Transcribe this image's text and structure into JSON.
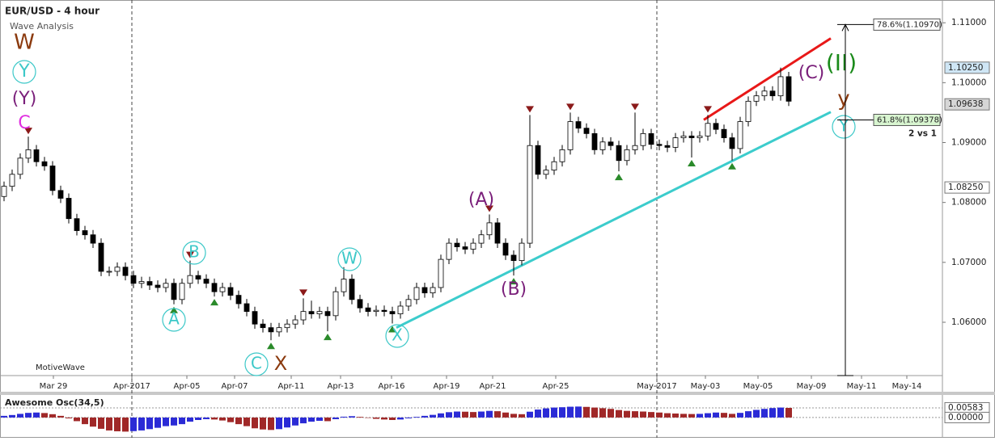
{
  "chart_data": {
    "type": "candlestick",
    "title": "EUR/USD - 4 hour",
    "subtitle": "Wave Analysis",
    "footer": "MotiveWave",
    "up_color": "#ffffff",
    "down_color": "#000000",
    "open": [
      1.081,
      1.0827,
      1.0847,
      1.0874,
      1.0888,
      1.0868,
      1.0861,
      1.082,
      1.0807,
      1.0773,
      1.0753,
      1.0746,
      1.0732,
      1.0685,
      1.0685,
      1.0692,
      1.0678,
      1.0665,
      1.0668,
      1.0662,
      1.0658,
      1.0665,
      1.0638,
      1.0665,
      1.0678,
      1.0672,
      1.0665,
      1.0651,
      1.0658,
      1.0645,
      1.0631,
      1.0618,
      1.0597,
      1.0591,
      1.0584,
      1.0591,
      1.0597,
      1.0604,
      1.0618,
      1.0614,
      1.0618,
      1.0611,
      1.0651,
      1.0672,
      1.0638,
      1.0624,
      1.0618,
      1.062,
      1.0618,
      1.0614,
      1.0627,
      1.0638,
      1.0658,
      1.0649,
      1.0658,
      1.0705,
      1.0732,
      1.0726,
      1.0722,
      1.0732,
      1.0746,
      1.0766,
      1.0732,
      1.0712,
      1.0703,
      1.0732,
      1.0895,
      1.0847,
      1.0854,
      1.0868,
      1.0888,
      1.0935,
      1.0924,
      1.0915,
      1.0888,
      1.0901,
      1.0895,
      1.087,
      1.0888,
      1.0895,
      1.0915,
      1.0897,
      1.0895,
      1.0892,
      1.0908,
      1.0911,
      1.0908,
      1.0911,
      1.0932,
      1.0922,
      1.0908,
      1.089,
      1.0935,
      1.0969,
      1.0978,
      1.0986,
      1.0978,
      1.101
    ],
    "high": [
      1.0835,
      1.0855,
      1.0882,
      1.091,
      1.0896,
      1.0876,
      1.0869,
      1.0828,
      1.0815,
      1.0781,
      1.0761,
      1.0754,
      1.074,
      1.0693,
      1.07,
      1.07,
      1.0686,
      1.0676,
      1.0676,
      1.067,
      1.0673,
      1.0673,
      1.0673,
      1.0703,
      1.0686,
      1.068,
      1.0673,
      1.0666,
      1.0666,
      1.0653,
      1.0639,
      1.0626,
      1.0605,
      1.0599,
      1.0599,
      1.0605,
      1.0612,
      1.064,
      1.0636,
      1.0626,
      1.0626,
      1.0659,
      1.0692,
      1.068,
      1.0646,
      1.0632,
      1.0628,
      1.0628,
      1.0626,
      1.0635,
      1.0646,
      1.0666,
      1.0666,
      1.0666,
      1.0713,
      1.074,
      1.074,
      1.0734,
      1.074,
      1.0754,
      1.078,
      1.0774,
      1.074,
      1.072,
      1.074,
      1.0946,
      1.0903,
      1.0862,
      1.0876,
      1.0896,
      1.095,
      1.0943,
      1.0932,
      1.0923,
      1.0909,
      1.0909,
      1.0903,
      1.0896,
      1.095,
      1.0923,
      1.0923,
      1.0905,
      1.0903,
      1.0916,
      1.0919,
      1.0919,
      1.0919,
      1.0946,
      1.094,
      1.093,
      1.0916,
      1.0943,
      1.0977,
      1.0986,
      1.0994,
      1.0994,
      1.1025,
      1.1018
    ],
    "low": [
      1.0802,
      1.0819,
      1.0839,
      1.0866,
      1.086,
      1.0853,
      1.0812,
      1.0799,
      1.0765,
      1.0745,
      1.0738,
      1.0724,
      1.0677,
      1.0677,
      1.0677,
      1.067,
      1.0657,
      1.0657,
      1.0654,
      1.065,
      1.065,
      1.063,
      1.063,
      1.0657,
      1.0664,
      1.0657,
      1.0643,
      1.0643,
      1.0637,
      1.0623,
      1.061,
      1.0589,
      1.0583,
      1.057,
      1.0576,
      1.0583,
      1.0589,
      1.0596,
      1.0606,
      1.0606,
      1.0585,
      1.0603,
      1.0643,
      1.063,
      1.0616,
      1.061,
      1.061,
      1.061,
      1.0598,
      1.0606,
      1.0619,
      1.063,
      1.0641,
      1.0641,
      1.065,
      1.0697,
      1.0718,
      1.0714,
      1.0714,
      1.0724,
      1.0738,
      1.0724,
      1.0704,
      1.0678,
      1.0695,
      1.0724,
      1.0839,
      1.0839,
      1.0846,
      1.086,
      1.088,
      1.0916,
      1.0907,
      1.088,
      1.088,
      1.0887,
      1.0852,
      1.0862,
      1.088,
      1.0887,
      1.0889,
      1.0887,
      1.0884,
      1.0884,
      1.09,
      1.0875,
      1.09,
      1.0903,
      1.0914,
      1.09,
      1.087,
      1.0882,
      1.0927,
      1.0961,
      1.097,
      1.097,
      1.097,
      1.0961
    ],
    "close": [
      1.0827,
      1.0847,
      1.0874,
      1.0888,
      1.0868,
      1.0861,
      1.082,
      1.0807,
      1.0773,
      1.0753,
      1.0746,
      1.0732,
      1.0685,
      1.0685,
      1.0692,
      1.0678,
      1.0665,
      1.0668,
      1.0662,
      1.0658,
      1.0665,
      1.0638,
      1.0665,
      1.0678,
      1.0672,
      1.0665,
      1.0651,
      1.0658,
      1.0645,
      1.0631,
      1.0618,
      1.0597,
      1.0591,
      1.0584,
      1.0591,
      1.0597,
      1.0604,
      1.0618,
      1.0614,
      1.0618,
      1.0611,
      1.0651,
      1.0672,
      1.0638,
      1.0624,
      1.0618,
      1.062,
      1.0618,
      1.0614,
      1.0627,
      1.0638,
      1.0658,
      1.0649,
      1.0658,
      1.0705,
      1.0732,
      1.0726,
      1.0722,
      1.0732,
      1.0746,
      1.0766,
      1.0732,
      1.0712,
      1.0703,
      1.0732,
      1.0895,
      1.0847,
      1.0854,
      1.0868,
      1.0888,
      1.0935,
      1.0924,
      1.0915,
      1.0888,
      1.0901,
      1.0895,
      1.087,
      1.0888,
      1.0895,
      1.0915,
      1.0897,
      1.0895,
      1.0892,
      1.0908,
      1.0911,
      1.0908,
      1.0911,
      1.0932,
      1.0922,
      1.0908,
      1.089,
      1.0935,
      1.0969,
      1.0978,
      1.0986,
      1.0978,
      1.101,
      1.0969
    ],
    "xlim": [
      -0.5,
      116
    ],
    "xticks": [
      {
        "value": 6.1,
        "label": "Mar 29"
      },
      {
        "value": 15.8,
        "label": "Apr-2017"
      },
      {
        "value": 22.6,
        "label": "Apr-05"
      },
      {
        "value": 28.5,
        "label": "Apr-07"
      },
      {
        "value": 35.5,
        "label": "Apr-11"
      },
      {
        "value": 41.6,
        "label": "Apr-13"
      },
      {
        "value": 47.9,
        "label": "Apr-16"
      },
      {
        "value": 54.7,
        "label": "Apr-19"
      },
      {
        "value": 60.4,
        "label": "Apr-21"
      },
      {
        "value": 68.2,
        "label": "Apr-25"
      },
      {
        "value": 80.7,
        "label": "May-2017"
      },
      {
        "value": 86.7,
        "label": "May-03"
      },
      {
        "value": 93.2,
        "label": "May-05"
      },
      {
        "value": 99.8,
        "label": "May-09"
      },
      {
        "value": 106,
        "label": "May-11"
      },
      {
        "value": 111.6,
        "label": "May-14"
      }
    ],
    "ylim": [
      1.0511,
      1.1138
    ],
    "yticks": [
      {
        "value": 1.06,
        "label": "1.06000"
      },
      {
        "value": 1.07,
        "label": "1.07000"
      },
      {
        "value": 1.08,
        "label": "1.08000"
      },
      {
        "value": 1.09,
        "label": "1.09000"
      },
      {
        "value": 1.1,
        "label": "1.10000"
      },
      {
        "value": 1.11,
        "label": "1.11000"
      }
    ],
    "price_labels": [
      {
        "value": 1.1025,
        "label": "1.10250",
        "color": "#cfe6f5"
      },
      {
        "value": 1.09638,
        "label": "1.09638",
        "color": "#d6d6d6"
      },
      {
        "value": 1.0825,
        "label": "1.08250",
        "color": "#ffffff"
      }
    ],
    "fib_levels": [
      {
        "value": 1.1097,
        "label": "78.6%(1.10970)",
        "color": "#ffffff"
      },
      {
        "value": 1.09378,
        "label": "61.8%(1.09378)",
        "color": "#d8f5d0"
      }
    ],
    "fib_note": "2 vs 1",
    "trendlines": [
      {
        "color": "#3ccccc",
        "x": [
          48.5,
          102.2
        ],
        "y": [
          1.0591,
          1.0951
        ]
      },
      {
        "color": "#e81818",
        "x": [
          86.5,
          102.2
        ],
        "y": [
          1.0938,
          1.1074
        ]
      }
    ],
    "annotations": [
      {
        "text": "W",
        "color": "#8b3a0e",
        "circled": false
      },
      {
        "text": "Y",
        "color": "#3cc8c8",
        "circled": true
      },
      {
        "text": "(Y)",
        "color": "#7a1f7a",
        "circled": false
      },
      {
        "text": "C",
        "color": "#e030e0",
        "circled": false
      },
      {
        "text": "B",
        "color": "#3cc8c8",
        "circled": true
      },
      {
        "text": "A",
        "color": "#3cc8c8",
        "circled": true
      },
      {
        "text": "C",
        "color": "#3cc8c8",
        "circled": true
      },
      {
        "text": "X",
        "color": "#8b3a0e",
        "circled": false
      },
      {
        "text": "W",
        "color": "#3cc8c8",
        "circled": true
      },
      {
        "text": "X",
        "color": "#3cc8c8",
        "circled": true
      },
      {
        "text": "(A)",
        "color": "#7a1f7a",
        "circled": false
      },
      {
        "text": "(B)",
        "color": "#7a1f7a",
        "circled": false
      },
      {
        "text": "(C)",
        "color": "#7a1f7a",
        "circled": false
      },
      {
        "text": "(II)",
        "color": "#1a8a1a",
        "circled": false
      },
      {
        "text": "y",
        "color": "#8b3a0e",
        "circled": false
      },
      {
        "text": "Y",
        "color": "#3cc8c8",
        "circled": true
      }
    ],
    "indicator": {
      "type": "bar",
      "title": "Awesome Osc(34,5)",
      "up_color": "#2b2bd6",
      "down_color": "#a02828",
      "values": [
        0.001,
        0.0015,
        0.0022,
        0.0028,
        0.003,
        0.0027,
        0.002,
        0.001,
        -0.0005,
        -0.0022,
        -0.004,
        -0.0055,
        -0.0068,
        -0.0078,
        -0.0083,
        -0.0085,
        -0.0082,
        -0.0078,
        -0.007,
        -0.0062,
        -0.0052,
        -0.0048,
        -0.004,
        -0.0025,
        -0.0015,
        -0.001,
        -0.0012,
        -0.0018,
        -0.0028,
        -0.004,
        -0.0052,
        -0.0065,
        -0.0072,
        -0.0075,
        -0.007,
        -0.006,
        -0.0048,
        -0.0035,
        -0.0025,
        -0.002,
        -0.0022,
        -0.001,
        0.0005,
        0.0008,
        0.0004,
        -0.0002,
        -0.0008,
        -0.0012,
        -0.0015,
        -0.0012,
        -0.0005,
        0.0004,
        0.001,
        0.0016,
        0.0025,
        0.0032,
        0.0036,
        0.0035,
        0.0033,
        0.0036,
        0.004,
        0.0038,
        0.003,
        0.0022,
        0.002,
        0.0035,
        0.0048,
        0.0055,
        0.006,
        0.0062,
        0.0065,
        0.0066,
        0.0064,
        0.006,
        0.0056,
        0.0052,
        0.0045,
        0.004,
        0.0038,
        0.0036,
        0.0033,
        0.003,
        0.0026,
        0.0024,
        0.0022,
        0.0021,
        0.0022,
        0.0026,
        0.003,
        0.0028,
        0.0022,
        0.0028,
        0.0038,
        0.0046,
        0.0052,
        0.0057,
        0.006,
        0.0058
      ],
      "ylim": [
        -0.0088,
        0.0131
      ],
      "yticks": [
        {
          "value": 0.00583,
          "label": "0.00583"
        },
        {
          "value": 0,
          "label": "0.00000"
        }
      ]
    }
  }
}
